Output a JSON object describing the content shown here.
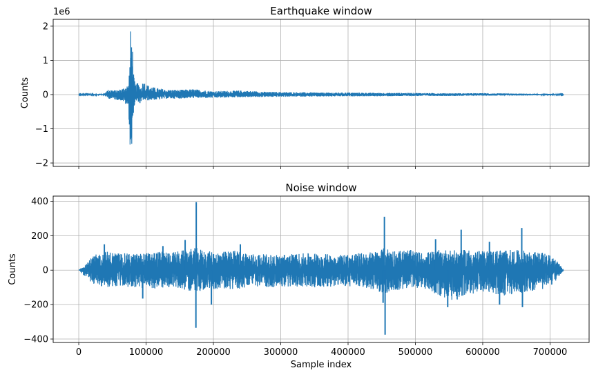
{
  "chart_data": [
    {
      "type": "line",
      "title": "Earthquake window",
      "ylabel": "Counts",
      "xlabel": "",
      "y_scale_label": "1e6",
      "xlim": [
        -38000,
        758000
      ],
      "ylim": [
        -2.1,
        2.2
      ],
      "y_unit_multiplier": 1000000,
      "yticks": [
        -2,
        -1,
        0,
        1,
        2
      ],
      "ytick_labels": [
        "−2",
        "−1",
        "0",
        "1",
        "2"
      ],
      "xticks": [
        0,
        100000,
        200000,
        300000,
        400000,
        500000,
        600000,
        700000
      ],
      "xtick_labels_shown": false,
      "grid": true,
      "line_color": "#1f77b4",
      "x_range": [
        0,
        720000
      ],
      "envelope_x": [
        0,
        38000,
        40000,
        45000,
        55000,
        65000,
        70000,
        74000,
        76000,
        77000,
        78000,
        79000,
        80000,
        81000,
        82000,
        84000,
        88000,
        92000,
        96000,
        100000,
        110000,
        120000,
        130000,
        150000,
        170000,
        200000,
        240000,
        280000,
        320000,
        360000,
        400000,
        450000,
        500000,
        550000,
        600000,
        650000,
        700000,
        720000
      ],
      "envelope_top": [
        0.01,
        0.02,
        0.1,
        0.16,
        0.12,
        0.18,
        0.25,
        0.3,
        1.1,
        1.95,
        1.6,
        1.97,
        1.4,
        0.9,
        0.5,
        0.3,
        0.35,
        0.2,
        0.42,
        0.3,
        0.22,
        0.18,
        0.15,
        0.14,
        0.16,
        0.1,
        0.12,
        0.08,
        0.07,
        0.06,
        0.06,
        0.05,
        0.05,
        0.04,
        0.04,
        0.03,
        0.02,
        0.01
      ],
      "envelope_bottom": [
        -0.01,
        -0.02,
        -0.06,
        -0.12,
        -0.15,
        -0.18,
        -0.3,
        -0.4,
        -1.5,
        -1.75,
        -1.6,
        -1.9,
        -1.15,
        -0.6,
        -0.4,
        -0.25,
        -0.2,
        -0.3,
        -0.15,
        -0.18,
        -0.16,
        -0.15,
        -0.12,
        -0.12,
        -0.1,
        -0.1,
        -0.08,
        -0.07,
        -0.06,
        -0.06,
        -0.05,
        -0.05,
        -0.04,
        -0.04,
        -0.03,
        -0.03,
        -0.02,
        -0.01
      ]
    },
    {
      "type": "line",
      "title": "Noise window",
      "ylabel": "Counts",
      "xlabel": "Sample index",
      "xlim": [
        -38000,
        758000
      ],
      "ylim": [
        -420,
        430
      ],
      "yticks": [
        -400,
        -200,
        0,
        200,
        400
      ],
      "ytick_labels": [
        "−400",
        "−200",
        "0",
        "200",
        "400"
      ],
      "xticks": [
        0,
        100000,
        200000,
        300000,
        400000,
        500000,
        600000,
        700000
      ],
      "xtick_labels": [
        "0",
        "100000",
        "200000",
        "300000",
        "400000",
        "500000",
        "600000",
        "700000"
      ],
      "grid": true,
      "line_color": "#1f77b4",
      "x_range": [
        0,
        720000
      ],
      "envelope_x": [
        0,
        5000,
        15000,
        25000,
        40000,
        60000,
        80000,
        100000,
        120000,
        140000,
        160000,
        175000,
        190000,
        210000,
        230000,
        260000,
        290000,
        320000,
        350000,
        380000,
        400000,
        420000,
        440000,
        455000,
        470000,
        490000,
        510000,
        540000,
        560000,
        580000,
        600000,
        630000,
        660000,
        690000,
        705000,
        715000,
        720000
      ],
      "envelope_top": [
        0,
        20,
        60,
        90,
        110,
        100,
        95,
        100,
        110,
        105,
        120,
        130,
        110,
        105,
        115,
        95,
        90,
        95,
        100,
        90,
        95,
        100,
        110,
        130,
        115,
        120,
        100,
        120,
        115,
        120,
        110,
        120,
        115,
        100,
        80,
        30,
        0
      ],
      "envelope_bottom": [
        0,
        -20,
        -60,
        -90,
        -100,
        -95,
        -100,
        -110,
        -105,
        -100,
        -115,
        -130,
        -110,
        -110,
        -115,
        -95,
        -100,
        -95,
        -100,
        -95,
        -95,
        -100,
        -115,
        -140,
        -120,
        -110,
        -100,
        -160,
        -180,
        -140,
        -130,
        -150,
        -130,
        -110,
        -80,
        -30,
        0
      ],
      "spikes": [
        {
          "x": 38000,
          "y": 150
        },
        {
          "x": 95000,
          "y": -165
        },
        {
          "x": 125000,
          "y": 140
        },
        {
          "x": 158000,
          "y": 175
        },
        {
          "x": 174500,
          "y": 395
        },
        {
          "x": 174000,
          "y": -335
        },
        {
          "x": 197000,
          "y": -200
        },
        {
          "x": 240000,
          "y": 150
        },
        {
          "x": 454000,
          "y": 310
        },
        {
          "x": 455000,
          "y": -375
        },
        {
          "x": 452000,
          "y": -190
        },
        {
          "x": 530000,
          "y": 180
        },
        {
          "x": 548000,
          "y": -215
        },
        {
          "x": 568000,
          "y": 235
        },
        {
          "x": 610000,
          "y": 165
        },
        {
          "x": 625000,
          "y": -200
        },
        {
          "x": 658000,
          "y": 245
        },
        {
          "x": 659000,
          "y": -215
        }
      ]
    }
  ]
}
